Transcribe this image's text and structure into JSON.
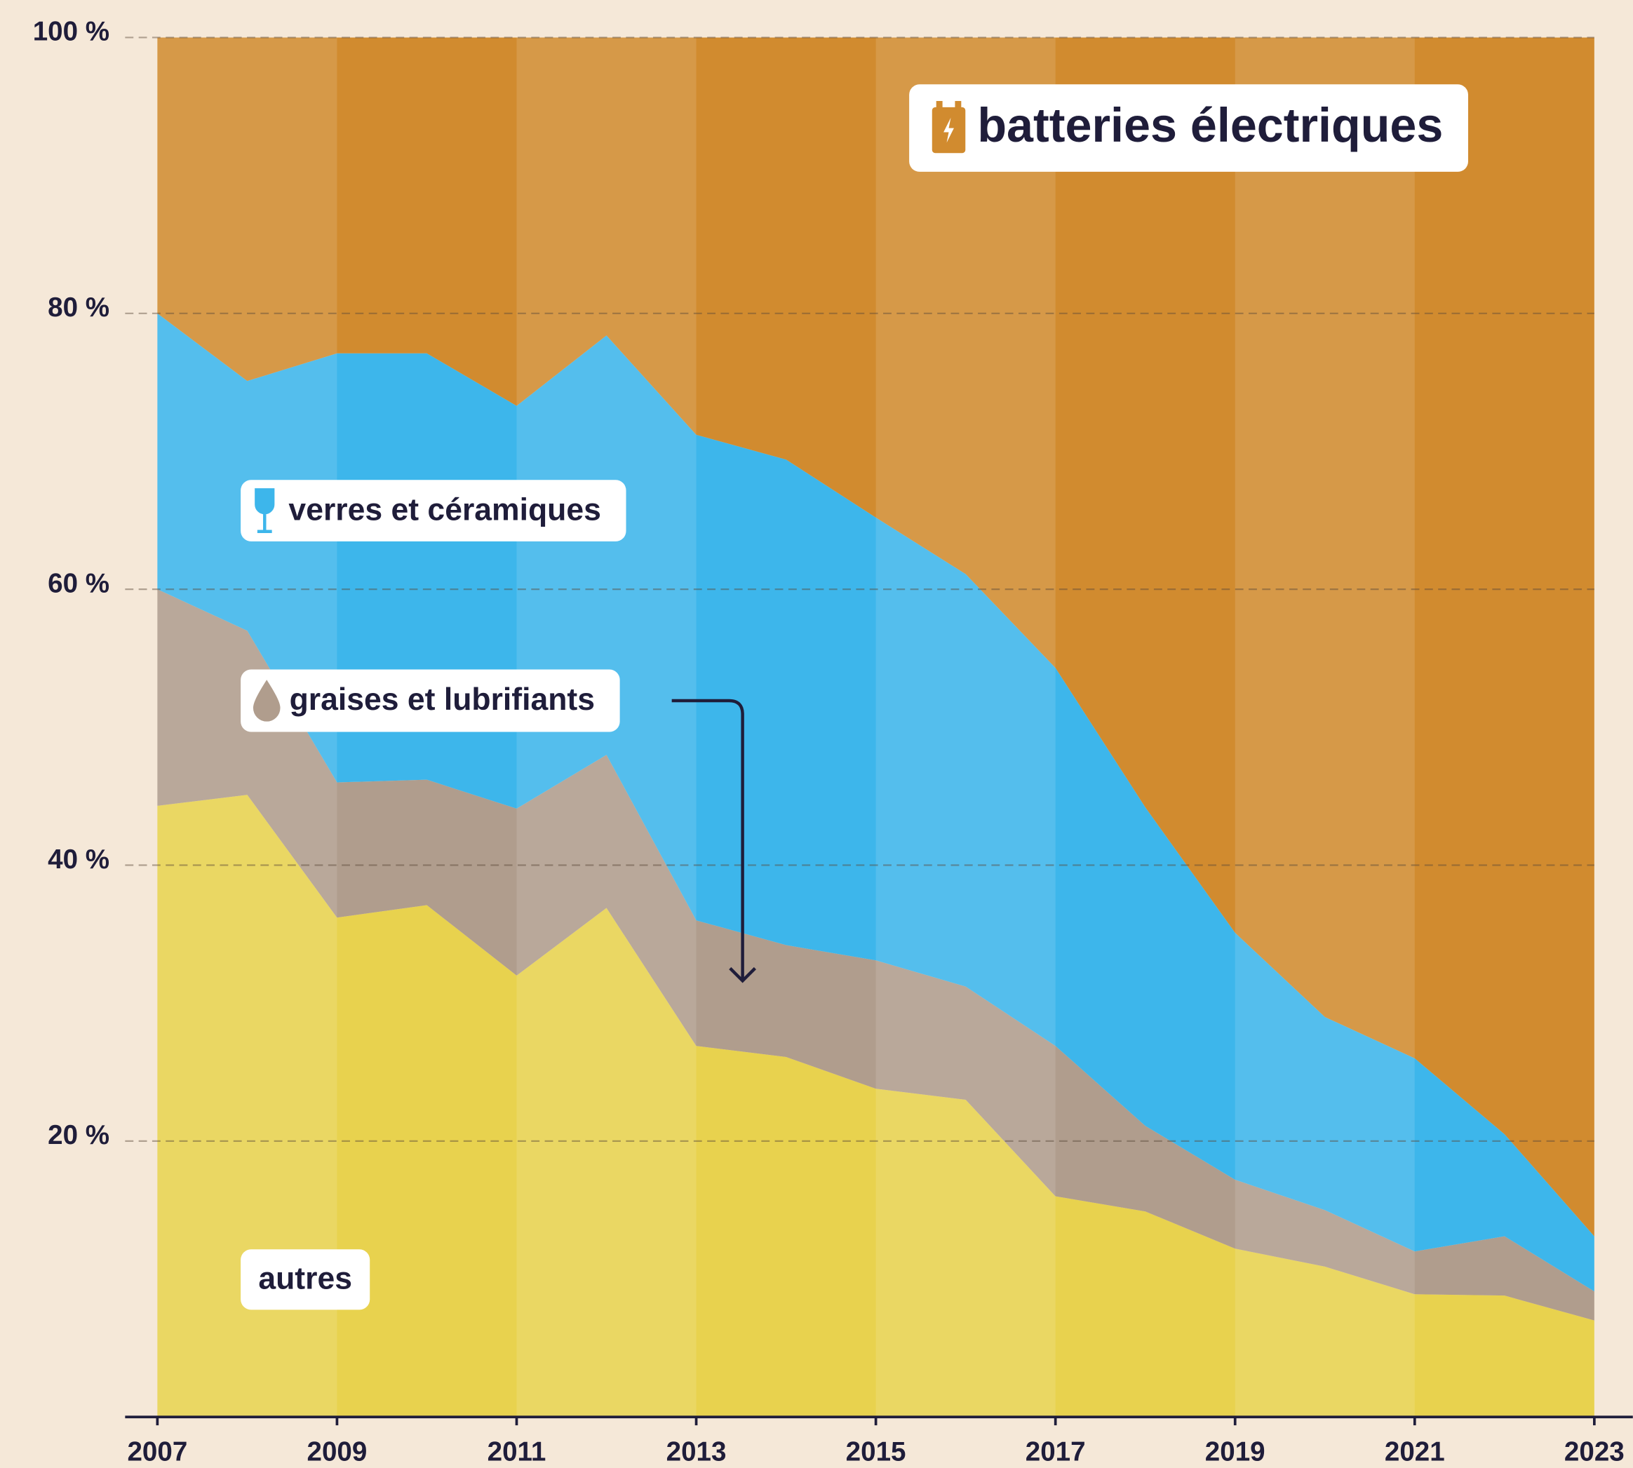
{
  "chart_data": {
    "type": "stacked-area",
    "x": [
      2007,
      2008,
      2009,
      2010,
      2011,
      2012,
      2013,
      2014,
      2015,
      2016,
      2017,
      2018,
      2019,
      2020,
      2021,
      2022,
      2023
    ],
    "series": [
      {
        "name": "autres",
        "color": "#e8d24e",
        "values": [
          44.3,
          45.1,
          36.2,
          37.1,
          32.0,
          36.9,
          26.9,
          26.1,
          23.8,
          23.0,
          16.0,
          14.9,
          12.2,
          10.9,
          8.9,
          8.8,
          7.0
        ]
      },
      {
        "name": "graises et lubrifiants",
        "color": "#b09d8d",
        "values": [
          15.7,
          11.9,
          9.8,
          9.1,
          12.1,
          11.1,
          9.1,
          8.1,
          9.3,
          8.2,
          10.9,
          6.2,
          5.0,
          4.1,
          3.1,
          4.3,
          2.1
        ]
      },
      {
        "name": "verres et céramiques",
        "color": "#3db6eb",
        "values": [
          20.0,
          18.1,
          31.1,
          30.9,
          29.2,
          30.4,
          35.2,
          35.2,
          32.1,
          29.9,
          27.4,
          23.1,
          17.9,
          14.0,
          14.0,
          7.4,
          4.0
        ]
      },
      {
        "name": "batteries électriques",
        "color": "#d18b2f",
        "values": [
          20.0,
          24.9,
          22.9,
          22.9,
          26.7,
          21.6,
          28.8,
          30.6,
          34.8,
          38.9,
          45.7,
          55.8,
          64.9,
          71.0,
          74.0,
          79.5,
          86.9
        ]
      }
    ],
    "xlim": [
      2007,
      2023
    ],
    "xticks": [
      2007,
      2009,
      2011,
      2013,
      2015,
      2017,
      2019,
      2021,
      2023
    ],
    "ylim": [
      0,
      100
    ],
    "yticks": [
      {
        "value": 20,
        "label": "20 %"
      },
      {
        "value": 40,
        "label": "40 %"
      },
      {
        "value": 60,
        "label": "60 %"
      },
      {
        "value": 80,
        "label": "80 %"
      },
      {
        "value": 100,
        "label": "100 %"
      }
    ],
    "grid": true
  }
}
